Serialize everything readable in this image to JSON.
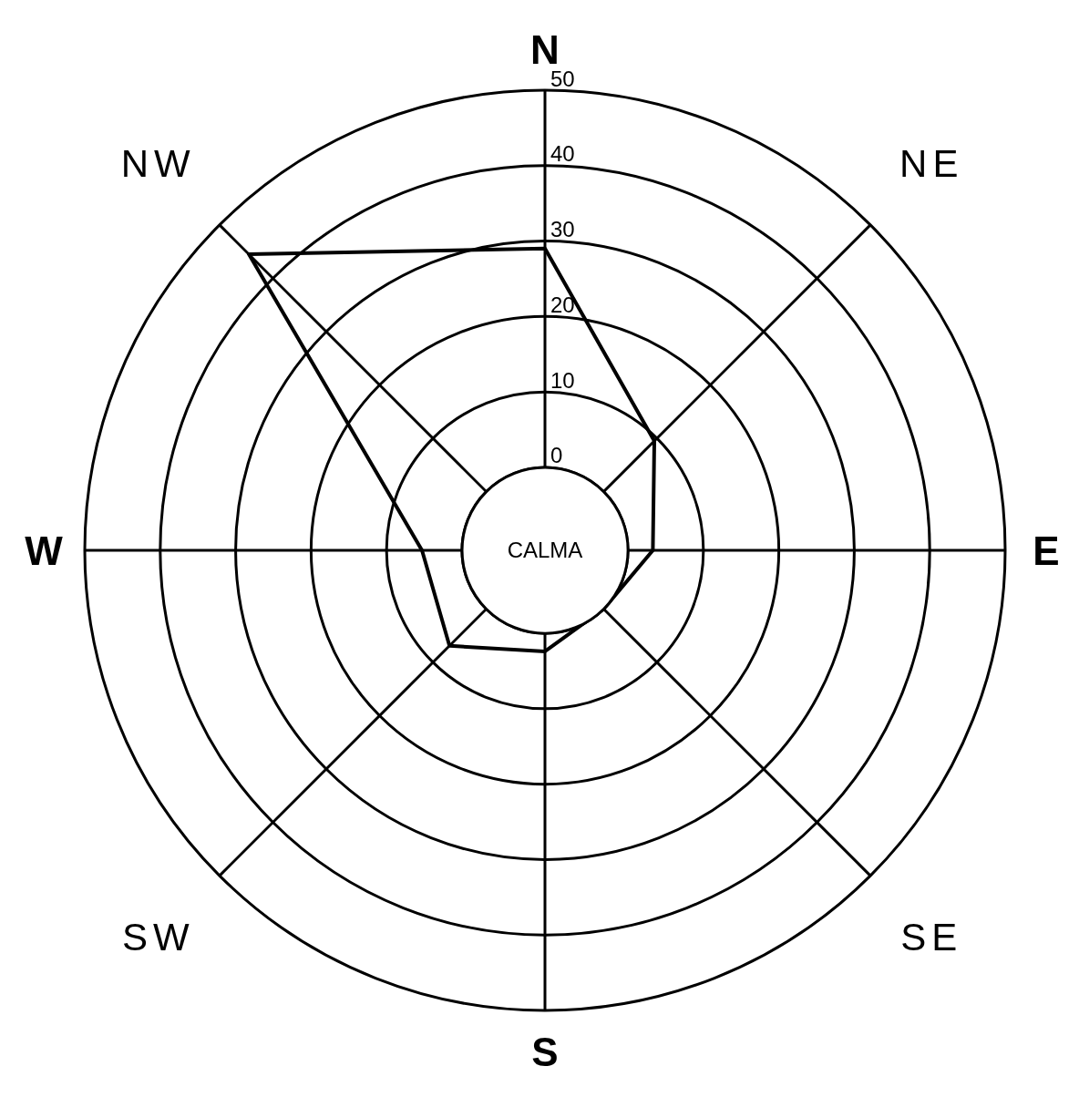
{
  "chart_data": {
    "type": "radar",
    "categories": [
      "N",
      "NE",
      "E",
      "SE",
      "S",
      "SW",
      "W",
      "NW"
    ],
    "series": [
      {
        "color": "#000000",
        "values": [
          29,
          9.5,
          3.3,
          0,
          2.4,
          6.9,
          5.3,
          44.5
        ]
      }
    ],
    "ylim": [
      -11,
      50
    ],
    "yticks": [
      0,
      10,
      20,
      30,
      40,
      50
    ],
    "grid": true,
    "annotations": [
      "CALMA"
    ]
  }
}
